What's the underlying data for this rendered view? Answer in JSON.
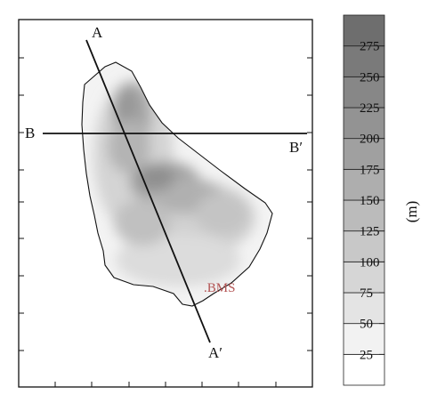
{
  "map": {
    "section_lines": [
      {
        "start_label": "A",
        "end_label": "A′"
      },
      {
        "start_label": "B",
        "end_label": "B′"
      }
    ],
    "marker": {
      "label": ".BMS",
      "color": "#b35454"
    }
  },
  "colorbar": {
    "unit_label": "(m)",
    "ticks": [
      "25",
      "50",
      "75",
      "100",
      "125",
      "150",
      "175",
      "200",
      "225",
      "250",
      "275"
    ],
    "colors": [
      "#ffffff",
      "#f2f2f2",
      "#e4e4e4",
      "#d6d6d6",
      "#c8c8c8",
      "#bbbbbb",
      "#aeaeae",
      "#a0a0a0",
      "#939393",
      "#878787",
      "#7a7a7a",
      "#6e6e6e"
    ]
  }
}
